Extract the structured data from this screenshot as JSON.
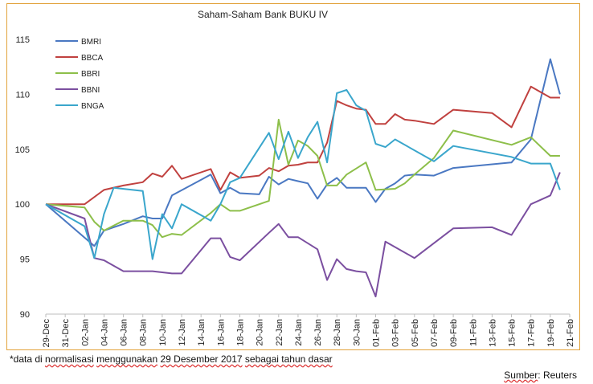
{
  "chart_data": {
    "type": "line",
    "title": "Saham-Saham Bank BUKU IV",
    "xlabel": "",
    "ylabel": "",
    "ylim": [
      90,
      115
    ],
    "yticks": [
      90,
      95,
      100,
      105,
      110,
      115
    ],
    "x_tick_labels": [
      "29-Dec",
      "31-Dec",
      "02-Jan",
      "04-Jan",
      "06-Jan",
      "08-Jan",
      "10-Jan",
      "12-Jan",
      "14-Jan",
      "16-Jan",
      "18-Jan",
      "20-Jan",
      "22-Jan",
      "24-Jan",
      "26-Jan",
      "28-Jan",
      "30-Jan",
      "01-Feb",
      "03-Feb",
      "05-Feb",
      "07-Feb",
      "09-Feb",
      "11-Feb",
      "13-Feb",
      "15-Feb",
      "17-Feb",
      "19-Feb",
      "21-Feb"
    ],
    "x_days": [
      0,
      2,
      4,
      5,
      6,
      7,
      8,
      9,
      10,
      11,
      12,
      13,
      14,
      15,
      16,
      17,
      18,
      19,
      20,
      21,
      22,
      23,
      24,
      25,
      26,
      27,
      28,
      29,
      30,
      31,
      32,
      33,
      34,
      35,
      36,
      37,
      38,
      40,
      42,
      46,
      48,
      49,
      50,
      52,
      53
    ],
    "legend_position": "top-left",
    "grid": false,
    "series": [
      {
        "name": "BMRI",
        "color": "#4a78c2",
        "values": [
          100,
          null,
          null,
          96.2,
          97.6,
          null,
          98.2,
          null,
          98.9,
          98.7,
          98.7,
          100.8,
          null,
          null,
          null,
          102.7,
          101,
          101.5,
          101.0,
          null,
          100.9,
          102.5,
          101.8,
          102.3,
          102.1,
          101.9,
          100.5,
          101.8,
          102.4,
          101.5,
          101.5,
          101.5,
          100.2,
          101.4,
          101.9,
          102.6,
          102.7,
          102.6,
          103.3,
          null,
          103.8,
          null,
          105.9,
          113.2,
          110
        ]
      },
      {
        "name": "BBCA",
        "color": "#c0413f",
        "values": [
          100,
          null,
          100,
          null,
          101.3,
          null,
          101.7,
          null,
          102.0,
          102.8,
          102.5,
          103.5,
          102.3,
          null,
          null,
          103.2,
          101.3,
          102.9,
          102.4,
          null,
          102.6,
          103.3,
          103.0,
          103.5,
          103.6,
          103.8,
          103.8,
          105.6,
          109.4,
          109.0,
          108.7,
          108.6,
          107.3,
          107.3,
          108.2,
          107.7,
          107.6,
          107.3,
          108.6,
          108.3,
          107.0,
          null,
          110.7,
          109.7,
          109.7
        ]
      },
      {
        "name": "BBRI",
        "color": "#8dbf4a",
        "values": [
          100,
          null,
          99.7,
          98.4,
          97.6,
          null,
          98.5,
          null,
          98.5,
          98.1,
          97.0,
          97.3,
          97.2,
          null,
          null,
          99.2,
          100,
          99.4,
          99.4,
          null,
          null,
          100.3,
          107.7,
          103.6,
          105.8,
          105.3,
          104.4,
          101.7,
          101.7,
          102.7,
          null,
          103.8,
          101.3,
          null,
          101.4,
          101.9,
          102.7,
          104.2,
          106.7,
          null,
          105.4,
          null,
          106.1,
          104.4,
          104.4
        ]
      },
      {
        "name": "BBNI",
        "color": "#7b4fa0",
        "values": [
          100,
          null,
          98.7,
          95.1,
          94.9,
          null,
          93.9,
          null,
          93.9,
          93.9,
          93.8,
          93.7,
          93.7,
          null,
          null,
          96.9,
          96.9,
          95.2,
          94.9,
          null,
          null,
          97.4,
          98.2,
          97.0,
          97.0,
          null,
          95.9,
          93.1,
          95.0,
          94.1,
          93.9,
          93.8,
          91.6,
          96.6,
          null,
          null,
          95.1,
          null,
          97.8,
          97.9,
          97.2,
          null,
          100.0,
          100.8,
          102.9
        ]
      },
      {
        "name": "BNGA",
        "color": "#3aa6cc",
        "values": [
          100,
          null,
          98.0,
          95.1,
          99.1,
          101.5,
          null,
          null,
          101.2,
          95.0,
          99.1,
          97.8,
          100.0,
          null,
          null,
          98.5,
          100.0,
          102.0,
          102.4,
          null,
          null,
          106.5,
          104.1,
          106.6,
          104.2,
          106.1,
          107.5,
          103.8,
          110.1,
          110.4,
          109.0,
          108.5,
          105.5,
          105.2,
          105.9,
          null,
          null,
          103.9,
          105.3,
          null,
          104.3,
          null,
          103.7,
          103.7,
          101.3
        ]
      }
    ]
  },
  "footnote": {
    "prefix": "*data di ",
    "w1": "normalisasi",
    "w2": "menggunakan",
    "mid1": " ",
    "w3": "29 Desember 2017",
    "mid2": " ",
    "w4": "sebagai tahun dasar"
  },
  "source": {
    "label": "Sumber",
    "colon": ": ",
    "name": "Reuters"
  }
}
